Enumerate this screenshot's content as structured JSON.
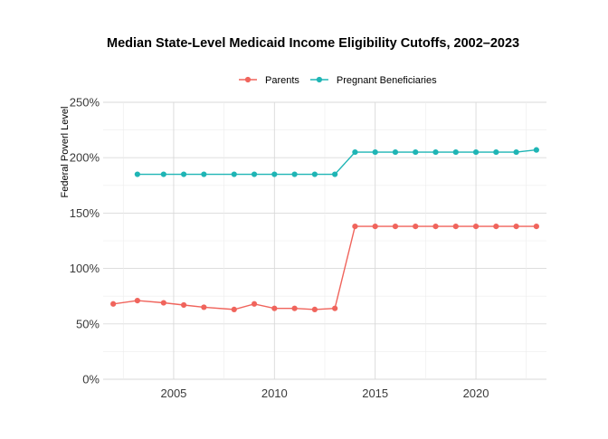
{
  "chart_data": {
    "type": "line",
    "title": "Median State-Level Medicaid Income Eligibility Cutoffs, 2002–2023",
    "xlabel": "",
    "ylabel": "Federal Poverl Level",
    "xlim": [
      2001.5,
      2023.5
    ],
    "ylim": [
      0,
      250
    ],
    "x_ticks": [
      2005,
      2010,
      2015,
      2020
    ],
    "y_ticks": [
      0,
      50,
      100,
      150,
      200,
      250
    ],
    "y_tick_labels": [
      "0%",
      "50%",
      "100%",
      "150%",
      "200%",
      "250%"
    ],
    "grid": true,
    "legend_position": "top",
    "series": [
      {
        "name": "Parents",
        "color": "#f0645c",
        "points": [
          {
            "x": 2002,
            "y": 68
          },
          {
            "x": 2003.2,
            "y": 71
          },
          {
            "x": 2004.5,
            "y": 69
          },
          {
            "x": 2005.5,
            "y": 67
          },
          {
            "x": 2006.5,
            "y": 65
          },
          {
            "x": 2008,
            "y": 63
          },
          {
            "x": 2009,
            "y": 68
          },
          {
            "x": 2010,
            "y": 64
          },
          {
            "x": 2011,
            "y": 64
          },
          {
            "x": 2012,
            "y": 63
          },
          {
            "x": 2013,
            "y": 64
          },
          {
            "x": 2014,
            "y": 138
          },
          {
            "x": 2015,
            "y": 138
          },
          {
            "x": 2016,
            "y": 138
          },
          {
            "x": 2017,
            "y": 138
          },
          {
            "x": 2018,
            "y": 138
          },
          {
            "x": 2019,
            "y": 138
          },
          {
            "x": 2020,
            "y": 138
          },
          {
            "x": 2021,
            "y": 138
          },
          {
            "x": 2022,
            "y": 138
          },
          {
            "x": 2023,
            "y": 138
          }
        ]
      },
      {
        "name": "Pregnant Beneficiaries",
        "color": "#1fb5b5",
        "points": [
          {
            "x": 2003.2,
            "y": 185
          },
          {
            "x": 2004.5,
            "y": 185
          },
          {
            "x": 2005.5,
            "y": 185
          },
          {
            "x": 2006.5,
            "y": 185
          },
          {
            "x": 2008,
            "y": 185
          },
          {
            "x": 2009,
            "y": 185
          },
          {
            "x": 2010,
            "y": 185
          },
          {
            "x": 2011,
            "y": 185
          },
          {
            "x": 2012,
            "y": 185
          },
          {
            "x": 2013,
            "y": 185
          },
          {
            "x": 2014,
            "y": 205
          },
          {
            "x": 2015,
            "y": 205
          },
          {
            "x": 2016,
            "y": 205
          },
          {
            "x": 2017,
            "y": 205
          },
          {
            "x": 2018,
            "y": 205
          },
          {
            "x": 2019,
            "y": 205
          },
          {
            "x": 2020,
            "y": 205
          },
          {
            "x": 2021,
            "y": 205
          },
          {
            "x": 2022,
            "y": 205
          },
          {
            "x": 2023,
            "y": 207
          }
        ]
      }
    ]
  }
}
